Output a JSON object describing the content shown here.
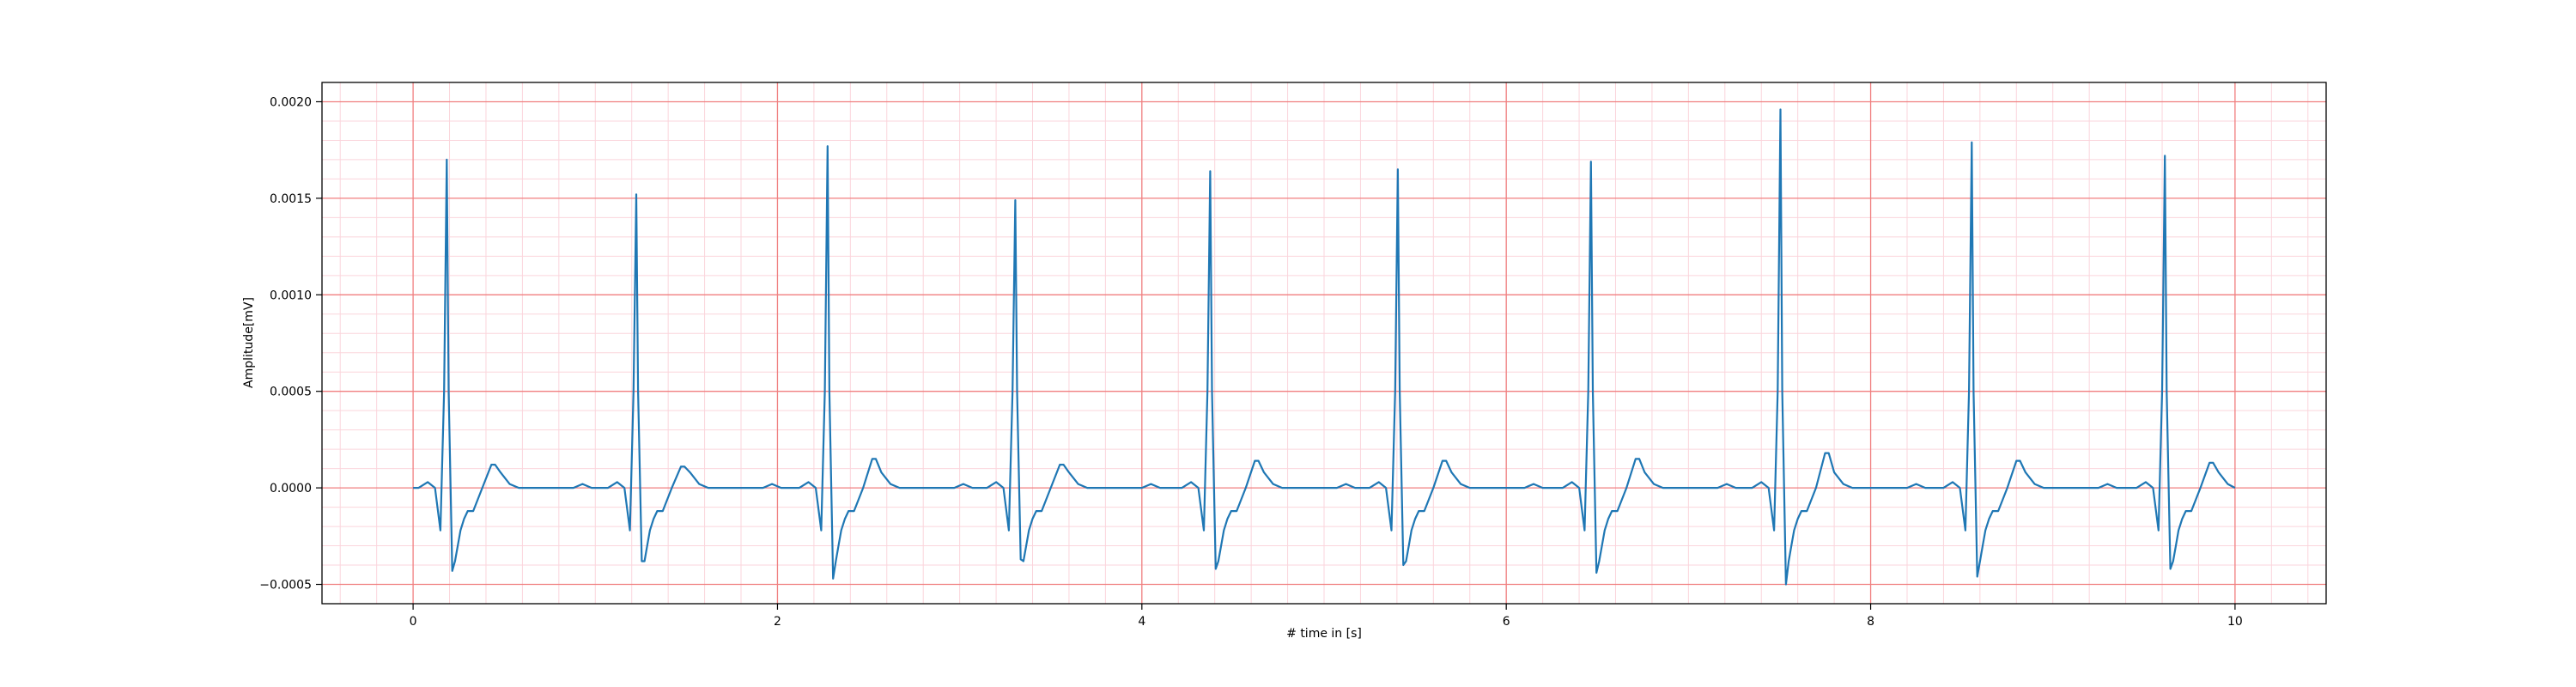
{
  "chart_data": {
    "type": "line",
    "title": "",
    "xlabel": "# time in [s]",
    "ylabel": "Amplitude[mV]",
    "xlim": [
      -0.5,
      10.5
    ],
    "ylim": [
      -0.0006,
      0.0021
    ],
    "x_ticks": [
      0,
      2,
      4,
      6,
      8,
      10
    ],
    "x_tick_labels": [
      "0",
      "2",
      "4",
      "6",
      "8",
      "10"
    ],
    "y_ticks": [
      -0.0005,
      0.0,
      0.0005,
      0.001,
      0.0015,
      0.002
    ],
    "y_tick_labels": [
      "−0.0005",
      "0.0000",
      "0.0005",
      "0.0010",
      "0.0015",
      "0.0020"
    ],
    "grid": "major grid red, minor grid light pink (ECG paper style)",
    "colors": {
      "line": "#1f77b4",
      "major_grid": "#f08080",
      "minor_grid": "#fbd5dc"
    },
    "series": [
      {
        "beat_template": {
          "x": [
            0.0,
            0.05,
            0.09,
            0.12,
            0.14,
            0.155,
            0.165,
            0.185,
            0.2,
            0.215,
            0.23,
            0.25,
            0.27,
            0.3,
            0.35,
            0.4,
            0.42,
            0.45,
            0.5,
            0.55,
            0.6,
            0.65,
            0.7,
            0.75,
            0.8,
            0.85,
            0.9,
            0.95,
            1.0
          ],
          "y": [
            0.0,
            3e-05,
            0.0,
            -0.00022,
            0.0005,
            0.0017,
            0.0005,
            -0.00043,
            -0.00038,
            -0.0003,
            -0.00022,
            -0.00016,
            -0.00012,
            -0.00012,
            0.0,
            0.00012,
            0.00012,
            8e-05,
            2e-05,
            0.0,
            0.0,
            0.0,
            0.0,
            0.0,
            0.0,
            0.0,
            2e-05,
            0.0,
            0.0
          ]
        },
        "beats": [
          {
            "onset": 0.03,
            "r_peak": 0.0017,
            "s_trough": -0.00043,
            "t_wave": 0.00012
          },
          {
            "onset": 1.07,
            "r_peak": 0.00152,
            "s_trough": -0.00038,
            "t_wave": 0.00011
          },
          {
            "onset": 2.12,
            "r_peak": 0.00177,
            "s_trough": -0.00047,
            "t_wave": 0.00015
          },
          {
            "onset": 3.15,
            "r_peak": 0.00149,
            "s_trough": -0.00037,
            "t_wave": 0.00012
          },
          {
            "onset": 4.22,
            "r_peak": 0.00164,
            "s_trough": -0.00042,
            "t_wave": 0.00014
          },
          {
            "onset": 5.25,
            "r_peak": 0.00165,
            "s_trough": -0.0004,
            "t_wave": 0.00014
          },
          {
            "onset": 6.31,
            "r_peak": 0.00169,
            "s_trough": -0.00044,
            "t_wave": 0.00015
          },
          {
            "onset": 7.35,
            "r_peak": 0.00196,
            "s_trough": -0.0005,
            "t_wave": 0.00018
          },
          {
            "onset": 8.4,
            "r_peak": 0.00179,
            "s_trough": -0.00046,
            "t_wave": 0.00014
          },
          {
            "onset": 9.46,
            "r_peak": 0.00172,
            "s_trough": -0.00042,
            "t_wave": 0.00013
          }
        ],
        "x_range": [
          0.0,
          10.0
        ]
      }
    ]
  }
}
